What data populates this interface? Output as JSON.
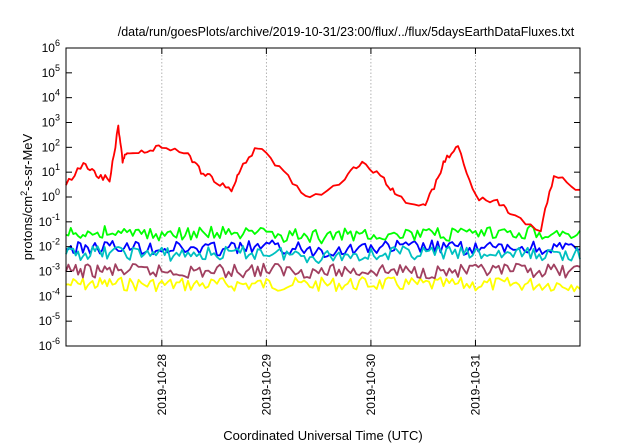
{
  "chart_data": {
    "type": "line",
    "title": "/data/run/goesPlots/archive/2019-10-31/23:00/flux/../flux/5daysEarthDataFluxes.txt",
    "xlabel": "Coordinated Universal Time (UTC)",
    "ylabel": "protons/cm2-s-sr-MeV",
    "yscale": "log",
    "ylim": [
      1e-06,
      1000000.0
    ],
    "xlim": [
      "2019-10-27 02:00",
      "2019-11-01 00:00"
    ],
    "grid": true,
    "x_tick_labels": [
      "2019-10-28",
      "2019-10-29",
      "2019-10-30",
      "2019-10-31"
    ],
    "y_ticks": [
      {
        "base": "10",
        "exp": "-6"
      },
      {
        "base": "10",
        "exp": "-5"
      },
      {
        "base": "10",
        "exp": "-4"
      },
      {
        "base": "10",
        "exp": "-3"
      },
      {
        "base": "10",
        "exp": "-2"
      },
      {
        "base": "10",
        "exp": "-1"
      },
      {
        "base": "10",
        "exp": "0"
      },
      {
        "base": "10",
        "exp": "1"
      },
      {
        "base": "10",
        "exp": "2"
      },
      {
        "base": "10",
        "exp": "3"
      },
      {
        "base": "10",
        "exp": "4"
      },
      {
        "base": "10",
        "exp": "5"
      },
      {
        "base": "10",
        "exp": "6"
      }
    ],
    "series": [
      {
        "color": "#ff0000",
        "x": [
          "2019-10-27 02:00",
          "2019-10-27 06:00",
          "2019-10-27 09:00",
          "2019-10-27 12:00",
          "2019-10-27 14:00",
          "2019-10-27 15:00",
          "2019-10-27 16:00",
          "2019-10-27 20:00",
          "2019-10-28 00:00",
          "2019-10-28 06:00",
          "2019-10-28 09:00",
          "2019-10-28 12:00",
          "2019-10-28 16:00",
          "2019-10-28 18:00",
          "2019-10-28 22:00",
          "2019-10-29 04:00",
          "2019-10-29 10:00",
          "2019-10-29 18:00",
          "2019-10-29 22:00",
          "2019-10-30 03:00",
          "2019-10-30 06:00",
          "2019-10-30 12:00",
          "2019-10-30 15:00",
          "2019-10-30 17:00",
          "2019-10-30 20:00",
          "2019-10-31 00:00",
          "2019-10-31 05:00",
          "2019-10-31 08:00",
          "2019-10-31 15:00",
          "2019-10-31 18:00",
          "2019-11-01 00:00"
        ],
        "y": [
          3,
          25,
          8,
          5,
          600,
          30,
          60,
          60,
          120,
          50,
          10,
          5,
          2,
          15,
          100,
          10,
          0.8,
          5,
          30,
          5,
          1,
          0.4,
          4,
          30,
          100,
          1,
          0.7,
          0.2,
          0.05,
          8,
          2
        ]
      },
      {
        "color": "#00ff00",
        "x": [
          "2019-10-27 02:00",
          "2019-10-27 12:00",
          "2019-10-28 00:00",
          "2019-10-28 12:00",
          "2019-10-29 00:00",
          "2019-10-29 12:00",
          "2019-10-30 00:00",
          "2019-10-30 12:00",
          "2019-10-31 00:00",
          "2019-10-31 12:00",
          "2019-11-01 00:00"
        ],
        "y": [
          0.03,
          0.04,
          0.03,
          0.035,
          0.03,
          0.025,
          0.035,
          0.03,
          0.03,
          0.04,
          0.03
        ]
      },
      {
        "color": "#00c0c0",
        "x": [
          "2019-10-27 02:00",
          "2019-10-27 12:00",
          "2019-10-28 00:00",
          "2019-10-28 12:00",
          "2019-10-29 00:00",
          "2019-10-29 12:00",
          "2019-10-30 00:00",
          "2019-10-30 12:00",
          "2019-10-31 00:00",
          "2019-10-31 12:00",
          "2019-11-01 00:00"
        ],
        "y": [
          0.005,
          0.006,
          0.005,
          0.005,
          0.006,
          0.004,
          0.005,
          0.006,
          0.005,
          0.005,
          0.005
        ]
      },
      {
        "color": "#0000ff",
        "x": [
          "2019-10-27 02:00",
          "2019-10-27 12:00",
          "2019-10-28 00:00",
          "2019-10-28 12:00",
          "2019-10-29 00:00",
          "2019-10-29 12:00",
          "2019-10-30 00:00",
          "2019-10-30 12:00",
          "2019-10-31 00:00",
          "2019-10-31 12:00",
          "2019-11-01 00:00"
        ],
        "y": [
          0.008,
          0.01,
          0.009,
          0.008,
          0.01,
          0.007,
          0.009,
          0.01,
          0.008,
          0.009,
          0.008
        ]
      },
      {
        "color": "#a04060",
        "x": [
          "2019-10-27 02:00",
          "2019-10-27 12:00",
          "2019-10-28 00:00",
          "2019-10-28 12:00",
          "2019-10-29 00:00",
          "2019-10-29 12:00",
          "2019-10-30 00:00",
          "2019-10-30 12:00",
          "2019-10-31 00:00",
          "2019-10-31 12:00",
          "2019-11-01 00:00"
        ],
        "y": [
          0.001,
          0.0011,
          0.001,
          0.001,
          0.0012,
          0.001,
          0.0011,
          0.001,
          0.001,
          0.0011,
          0.001
        ]
      },
      {
        "color": "#ffff00",
        "x": [
          "2019-10-27 02:00",
          "2019-10-27 12:00",
          "2019-10-28 00:00",
          "2019-10-28 12:00",
          "2019-10-29 00:00",
          "2019-10-29 12:00",
          "2019-10-30 00:00",
          "2019-10-30 12:00",
          "2019-10-31 00:00",
          "2019-10-31 12:00",
          "2019-11-01 00:00"
        ],
        "y": [
          0.0003,
          0.00032,
          0.0003,
          0.0003,
          0.00031,
          0.0003,
          0.00032,
          0.0003,
          0.0003,
          0.00031,
          0.0003
        ]
      }
    ]
  }
}
